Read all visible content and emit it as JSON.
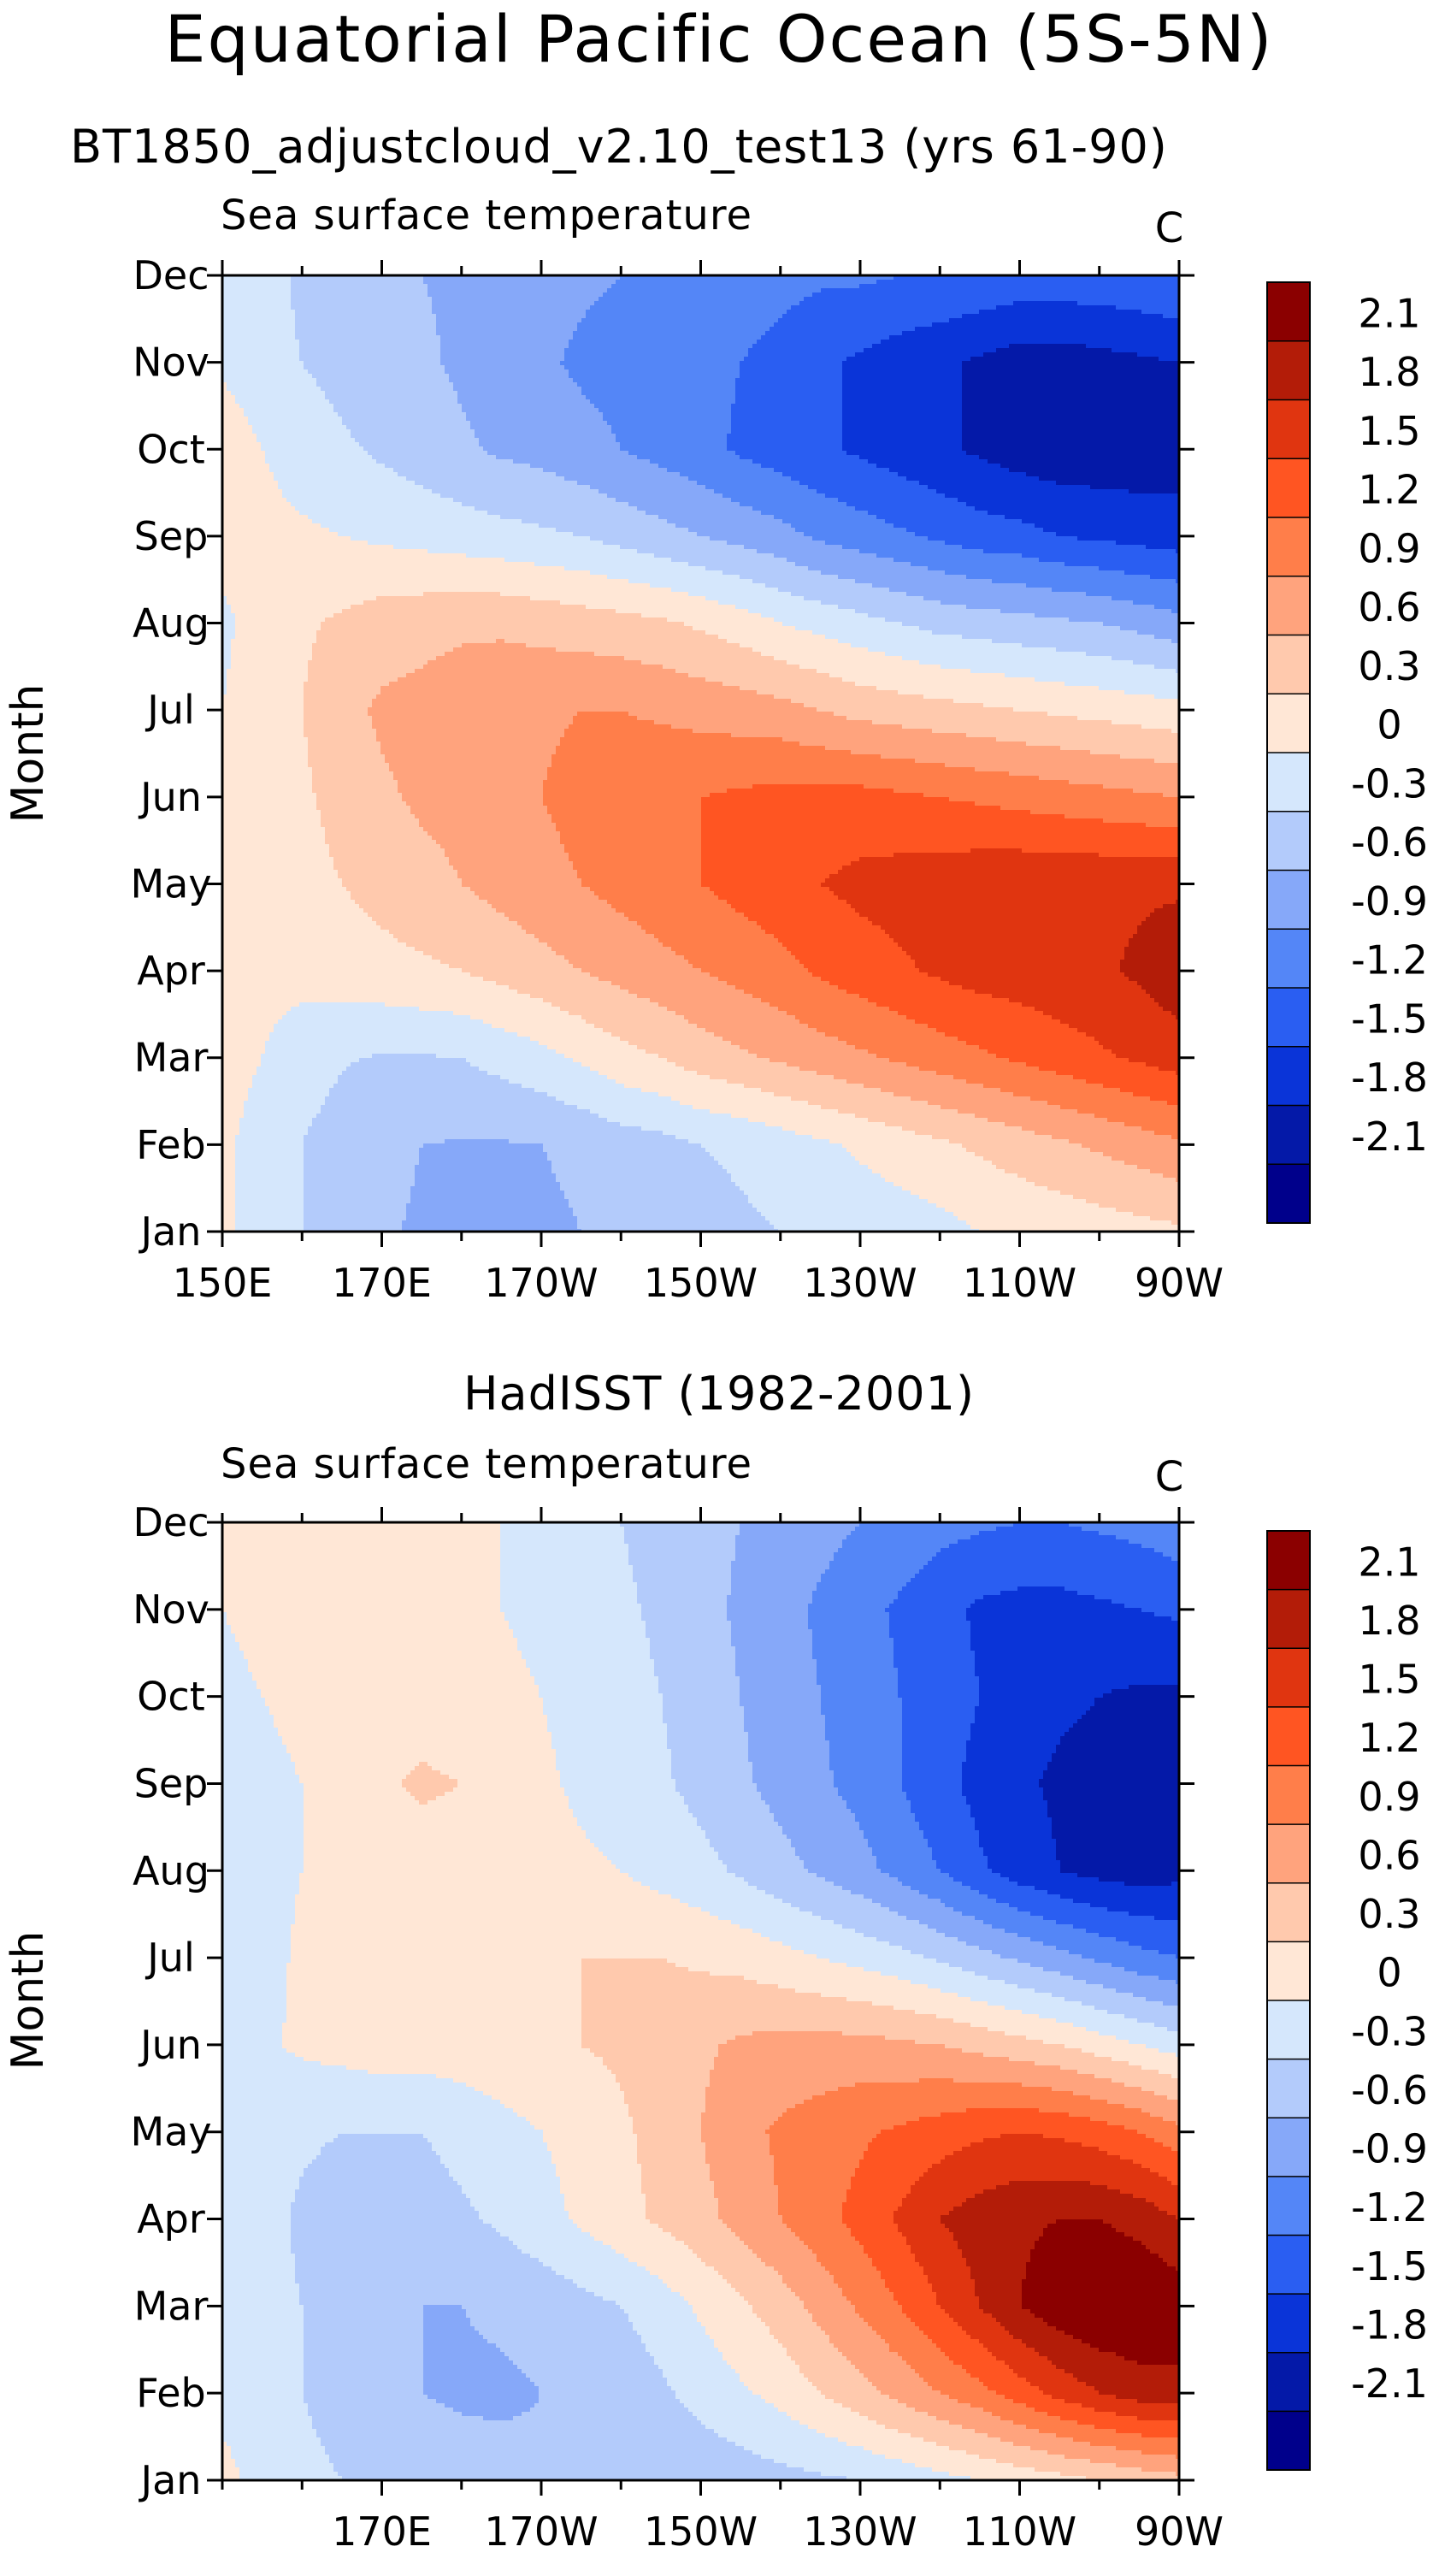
{
  "figure": {
    "title": "Equatorial Pacific Ocean (5S-5N)",
    "subtitle": "BT1850_adjustcloud_v2.10_test13 (yrs 61-90)"
  },
  "chart_data": [
    {
      "type": "heatmap",
      "title": "BT1850_adjustcloud_v2.10_test13 (yrs 61-90)",
      "variable_label": "Sea surface temperature",
      "units_label": "C",
      "ylabel": "Month",
      "xlabel": "",
      "x_tick_labels": [
        "150E",
        "170E",
        "170W",
        "150W",
        "130W",
        "110W",
        "90W"
      ],
      "x_ticks": [
        150,
        170,
        190,
        210,
        230,
        250,
        270
      ],
      "y_tick_labels": [
        "Jan",
        "Feb",
        "Mar",
        "Apr",
        "May",
        "Jun",
        "Jul",
        "Aug",
        "Sep",
        "Oct",
        "Nov",
        "Dec"
      ],
      "xlim": [
        150,
        270
      ],
      "ylim": [
        1,
        12
      ],
      "colorbar": {
        "levels": [
          -2.1,
          -1.8,
          -1.5,
          -1.2,
          -0.9,
          -0.6,
          -0.3,
          0,
          0.3,
          0.6,
          0.9,
          1.2,
          1.5,
          1.8,
          2.1
        ],
        "labels": [
          "2.1",
          "1.8",
          "1.5",
          "1.2",
          "0.9",
          "0.6",
          "0.3",
          "0",
          "-0.3",
          "-0.6",
          "-0.9",
          "-1.2",
          "-1.5",
          "-1.8",
          "-2.1"
        ],
        "colors": [
          "#8b0000",
          "#b31c08",
          "#e03510",
          "#ff5522",
          "#ff7e4a",
          "#ffa37d",
          "#ffc9ad",
          "#ffe7d6",
          "#d5e7fc",
          "#b3cbfb",
          "#86a8f9",
          "#5486f7",
          "#2a5ef2",
          "#0a34d8",
          "#0419a8",
          "#00008b"
        ]
      },
      "x": [
        150,
        155,
        160,
        165,
        170,
        175,
        180,
        185,
        190,
        195,
        200,
        205,
        210,
        215,
        220,
        225,
        230,
        235,
        240,
        245,
        250,
        255,
        260,
        265,
        270
      ],
      "z": [
        [
          0,
          0,
          -0.3,
          -0.4,
          -0.55,
          -0.65,
          -0.7,
          -0.7,
          -0.65,
          -0.6,
          -0.55,
          -0.45,
          -0.4,
          -0.35,
          -0.3,
          -0.25,
          -0.2,
          -0.15,
          -0.1,
          0.0,
          0.05,
          0.1,
          0.15,
          0.2,
          0.25
        ],
        [
          0.05,
          -0.1,
          -0.3,
          -0.4,
          -0.5,
          -0.6,
          -0.62,
          -0.62,
          -0.6,
          -0.55,
          -0.45,
          -0.4,
          -0.3,
          -0.25,
          -0.15,
          -0.05,
          0.05,
          0.15,
          0.25,
          0.35,
          0.45,
          0.55,
          0.65,
          0.75,
          0.85
        ],
        [
          0.1,
          0.0,
          -0.2,
          -0.28,
          -0.32,
          -0.32,
          -0.3,
          -0.2,
          -0.1,
          0.05,
          0.2,
          0.3,
          0.45,
          0.55,
          0.65,
          0.75,
          0.85,
          0.95,
          1.05,
          1.15,
          1.25,
          1.35,
          1.45,
          1.55,
          1.65
        ],
        [
          0.1,
          0.1,
          0.12,
          0.15,
          0.2,
          0.25,
          0.3,
          0.4,
          0.5,
          0.6,
          0.7,
          0.8,
          0.9,
          1.0,
          1.1,
          1.25,
          1.35,
          1.45,
          1.55,
          1.62,
          1.65,
          1.7,
          1.75,
          1.85,
          2.0
        ],
        [
          0.1,
          0.15,
          0.2,
          0.3,
          0.4,
          0.5,
          0.6,
          0.7,
          0.8,
          0.9,
          1.0,
          1.1,
          1.2,
          1.3,
          1.4,
          1.5,
          1.58,
          1.63,
          1.68,
          1.72,
          1.75,
          1.75,
          1.75,
          1.75,
          1.75
        ],
        [
          0.1,
          0.15,
          0.25,
          0.4,
          0.55,
          0.65,
          0.7,
          0.8,
          0.9,
          1.0,
          1.1,
          1.15,
          1.2,
          1.25,
          1.3,
          1.3,
          1.3,
          1.25,
          1.2,
          1.15,
          1.1,
          1.05,
          1.0,
          0.95,
          0.9
        ],
        [
          0.0,
          0.15,
          0.3,
          0.5,
          0.65,
          0.7,
          0.75,
          0.8,
          0.85,
          0.9,
          0.9,
          0.85,
          0.8,
          0.75,
          0.7,
          0.6,
          0.5,
          0.45,
          0.4,
          0.35,
          0.3,
          0.25,
          0.2,
          0.15,
          0.1
        ],
        [
          -0.05,
          0.1,
          0.25,
          0.35,
          0.45,
          0.5,
          0.55,
          0.55,
          0.5,
          0.45,
          0.4,
          0.35,
          0.25,
          0.15,
          0.0,
          -0.1,
          -0.2,
          -0.3,
          -0.4,
          -0.45,
          -0.5,
          -0.55,
          -0.6,
          -0.7,
          -0.8
        ],
        [
          0.1,
          0.1,
          0.05,
          0.0,
          -0.05,
          -0.1,
          -0.15,
          -0.2,
          -0.25,
          -0.3,
          -0.4,
          -0.5,
          -0.6,
          -0.7,
          -0.8,
          -0.95,
          -1.05,
          -1.15,
          -1.25,
          -1.35,
          -1.4,
          -1.5,
          -1.55,
          -1.6,
          -1.65
        ],
        [
          0.2,
          0.0,
          -0.15,
          -0.25,
          -0.35,
          -0.45,
          -0.55,
          -0.65,
          -0.7,
          -0.8,
          -0.9,
          -1.0,
          -1.1,
          -1.25,
          -1.35,
          -1.45,
          -1.55,
          -1.65,
          -1.75,
          -1.85,
          -1.95,
          -2.0,
          -2.0,
          -2.0,
          -1.95
        ],
        [
          -0.05,
          -0.2,
          -0.3,
          -0.4,
          -0.5,
          -0.55,
          -0.65,
          -0.75,
          -0.85,
          -0.95,
          -1.0,
          -1.05,
          -1.1,
          -1.2,
          -1.3,
          -1.45,
          -1.55,
          -1.65,
          -1.75,
          -1.85,
          -1.95,
          -1.95,
          -1.9,
          -1.85,
          -1.8
        ],
        [
          -0.1,
          -0.2,
          -0.35,
          -0.45,
          -0.55,
          -0.6,
          -0.65,
          -0.75,
          -0.8,
          -0.85,
          -0.9,
          -0.95,
          -1.0,
          -1.05,
          -1.1,
          -1.15,
          -1.15,
          -1.2,
          -1.2,
          -1.25,
          -1.3,
          -1.3,
          -1.3,
          -1.25,
          -1.2
        ]
      ]
    },
    {
      "type": "heatmap",
      "title": "HadISST (1982-2001)",
      "variable_label": "Sea surface temperature",
      "units_label": "C",
      "ylabel": "Month",
      "xlabel": "",
      "x_tick_labels": [
        "170E",
        "170W",
        "150W",
        "130W",
        "110W",
        "90W"
      ],
      "x_ticks": [
        170,
        190,
        210,
        230,
        250,
        270
      ],
      "y_tick_labels": [
        "Jan",
        "Feb",
        "Mar",
        "Apr",
        "May",
        "Jun",
        "Jul",
        "Aug",
        "Sep",
        "Oct",
        "Nov",
        "Dec"
      ],
      "xlim": [
        150,
        270
      ],
      "ylim": [
        1,
        12
      ],
      "colorbar": {
        "levels": [
          -2.1,
          -1.8,
          -1.5,
          -1.2,
          -0.9,
          -0.6,
          -0.3,
          0,
          0.3,
          0.6,
          0.9,
          1.2,
          1.5,
          1.8,
          2.1
        ],
        "labels": [
          "2.1",
          "1.8",
          "1.5",
          "1.2",
          "0.9",
          "0.6",
          "0.3",
          "0",
          "-0.3",
          "-0.6",
          "-0.9",
          "-1.2",
          "-1.5",
          "-1.8",
          "-2.1"
        ],
        "colors": [
          "#8b0000",
          "#b31c08",
          "#e03510",
          "#ff5522",
          "#ff7e4a",
          "#ffa37d",
          "#ffc9ad",
          "#ffe7d6",
          "#d5e7fc",
          "#b3cbfb",
          "#86a8f9",
          "#5486f7",
          "#2a5ef2",
          "#0a34d8",
          "#0419a8",
          "#00008b"
        ]
      },
      "x": [
        150,
        155,
        160,
        165,
        170,
        175,
        180,
        185,
        190,
        195,
        200,
        205,
        210,
        215,
        220,
        225,
        230,
        235,
        240,
        245,
        250,
        255,
        260,
        265,
        270
      ],
      "z": [
        [
          0.1,
          -0.1,
          -0.2,
          -0.3,
          -0.35,
          -0.4,
          -0.45,
          -0.5,
          -0.55,
          -0.58,
          -0.6,
          -0.55,
          -0.5,
          -0.45,
          -0.4,
          -0.35,
          -0.3,
          -0.2,
          -0.1,
          0.0,
          0.1,
          0.2,
          0.3,
          0.4,
          0.5
        ],
        [
          -0.1,
          -0.2,
          -0.3,
          -0.45,
          -0.55,
          -0.6,
          -0.65,
          -0.65,
          -0.6,
          -0.55,
          -0.5,
          -0.35,
          -0.2,
          -0.05,
          0.1,
          0.3,
          0.5,
          0.7,
          0.9,
          1.1,
          1.35,
          1.6,
          1.8,
          1.95,
          2.0
        ],
        [
          -0.1,
          -0.2,
          -0.3,
          -0.45,
          -0.55,
          -0.6,
          -0.6,
          -0.55,
          -0.5,
          -0.4,
          -0.3,
          -0.15,
          0.05,
          0.25,
          0.45,
          0.7,
          0.95,
          1.2,
          1.5,
          1.8,
          2.1,
          2.3,
          2.4,
          2.4,
          2.3
        ],
        [
          -0.1,
          -0.2,
          -0.35,
          -0.45,
          -0.5,
          -0.45,
          -0.35,
          -0.25,
          -0.1,
          0.05,
          0.2,
          0.35,
          0.5,
          0.7,
          0.9,
          1.1,
          1.3,
          1.55,
          1.8,
          1.95,
          2.05,
          2.1,
          2.1,
          2.0,
          1.8
        ],
        [
          -0.1,
          -0.2,
          -0.25,
          -0.3,
          -0.3,
          -0.3,
          -0.2,
          -0.1,
          0.0,
          0.1,
          0.25,
          0.4,
          0.6,
          0.8,
          0.95,
          1.05,
          1.15,
          1.25,
          1.35,
          1.45,
          1.5,
          1.45,
          1.35,
          1.2,
          1.0
        ],
        [
          -0.15,
          -0.05,
          0.05,
          0.1,
          0.15,
          0.15,
          0.15,
          0.2,
          0.25,
          0.3,
          0.35,
          0.45,
          0.55,
          0.65,
          0.7,
          0.7,
          0.7,
          0.65,
          0.6,
          0.5,
          0.4,
          0.3,
          0.15,
          0.0,
          -0.15
        ],
        [
          -0.2,
          -0.1,
          0.05,
          0.1,
          0.15,
          0.15,
          0.15,
          0.2,
          0.25,
          0.3,
          0.3,
          0.3,
          0.25,
          0.2,
          0.1,
          0.0,
          -0.1,
          -0.2,
          -0.35,
          -0.5,
          -0.65,
          -0.8,
          -0.95,
          -1.1,
          -1.2
        ],
        [
          -0.3,
          -0.1,
          0.0,
          0.05,
          0.1,
          0.15,
          0.15,
          0.15,
          0.1,
          0.05,
          0.0,
          -0.1,
          -0.2,
          -0.35,
          -0.5,
          -0.65,
          -0.8,
          -1.0,
          -1.2,
          -1.45,
          -1.65,
          -1.8,
          -1.9,
          -1.95,
          -1.9
        ],
        [
          -0.2,
          -0.1,
          0.0,
          0.1,
          0.25,
          0.35,
          0.3,
          0.15,
          0.05,
          -0.05,
          -0.15,
          -0.25,
          -0.4,
          -0.55,
          -0.7,
          -0.85,
          -1.0,
          -1.2,
          -1.4,
          -1.6,
          -1.75,
          -1.85,
          -1.9,
          -1.9,
          -1.85
        ],
        [
          -0.1,
          0.0,
          0.1,
          0.15,
          0.15,
          0.15,
          0.1,
          0.05,
          0.0,
          -0.1,
          -0.2,
          -0.3,
          -0.45,
          -0.6,
          -0.75,
          -0.9,
          -1.05,
          -1.2,
          -1.35,
          -1.5,
          -1.65,
          -1.75,
          -1.8,
          -1.85,
          -1.85
        ],
        [
          0.0,
          0.1,
          0.15,
          0.15,
          0.15,
          0.1,
          0.05,
          0.0,
          -0.05,
          -0.15,
          -0.25,
          -0.35,
          -0.5,
          -0.65,
          -0.8,
          -0.95,
          -1.1,
          -1.25,
          -1.4,
          -1.55,
          -1.6,
          -1.6,
          -1.55,
          -1.5,
          -1.45
        ],
        [
          0.05,
          0.1,
          0.15,
          0.15,
          0.15,
          0.1,
          0.05,
          0.0,
          -0.1,
          -0.2,
          -0.3,
          -0.4,
          -0.5,
          -0.6,
          -0.7,
          -0.8,
          -0.9,
          -1.0,
          -1.1,
          -1.15,
          -1.2,
          -1.2,
          -1.15,
          -1.1,
          -1.0
        ]
      ]
    }
  ]
}
